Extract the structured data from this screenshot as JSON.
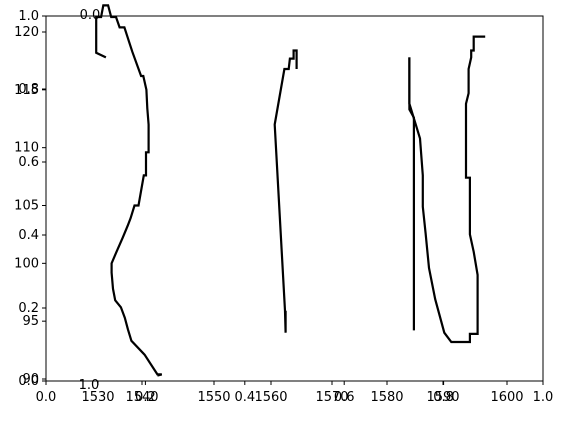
{
  "chart_data": {
    "type": "line",
    "title": "",
    "xlabel": "",
    "ylabel": "",
    "grid": false,
    "legend": "none",
    "line_color": "#000000",
    "axes": [
      {
        "name": "overlay-normalized-axis",
        "xlim": [
          0.0,
          1.0
        ],
        "ylim": [
          0.0,
          1.0
        ],
        "x_ticks": [
          "0.0",
          "0.2",
          "0.4",
          "0.6",
          "0.8",
          "1.0"
        ],
        "y_ticks": [
          "0.0",
          "0.2",
          "0.4",
          "0.6",
          "0.8",
          "1.0"
        ]
      },
      {
        "name": "panel-1",
        "xlim": [
          1526,
          1546
        ],
        "ylim": [
          89.5,
          121.5
        ],
        "x_ticks": [
          "1530",
          "1540"
        ],
        "y_ticks": [
          "90",
          "95",
          "100",
          "105",
          "110",
          "115",
          "120"
        ],
        "series": [
          {
            "x": [
              1531.8,
              1529.6,
              1529.6,
              1530.7,
              1532.3,
              1533.4,
              1534.6,
              1535.7,
              1537.5,
              1539.2,
              1540.1,
              1540.5,
              1540.5,
              1539.9,
              1539.9,
              1538.9,
              1538.9,
              1538.3,
              1537.3,
              1535.4,
              1534.8,
              1533.7,
              1532.9,
              1532.4,
              1532.6,
              1533.4,
              1535.3,
              1536.2,
              1537.5,
              1542.4,
              1543.3,
              1542.4
            ],
            "y": [
              118,
              120,
              118.5,
              121.5,
              121.5,
              120.5,
              119.5,
              119.5,
              118.7,
              115.5,
              114.6,
              112.4,
              109.7,
              108.5,
              107.5,
              106.5,
              104.6,
              104.6,
              102.8,
              101.6,
              100.2,
              98.7,
              97.4,
              96.3,
              95.4,
              94.4,
              93.1,
              92.4,
              90.6,
              90.4,
              90.4,
              90.4
            ],
            "x_corrected": [
              1531.8,
              1529.6,
              1529.6,
              1530.7,
              1532.3,
              1533.4,
              1534.6,
              1535.7,
              1537.5,
              1539.2,
              1540.1,
              1540.5,
              1540.5,
              1539.9,
              1539.9,
              1538.9,
              1538.9,
              1538.3,
              1537.3,
              1535.4,
              1534.8,
              1533.7,
              1532.9,
              1532.4,
              1532.6,
              1533.4,
              1535.3,
              1536.2,
              1537.5,
              1542.4,
              1543.3,
              1542.4
            ],
            "y_corrected": [
              116.5,
              117.6,
              119.8,
              120.8,
              121.5,
              121.5,
              120.9,
              120.1,
              118.8,
              116.1,
              116.1,
              114.8,
              113.3,
              110.7,
              109.1,
              108.2,
              107.6,
              105.6,
              104.4,
              103.1,
              101.7,
              100.4,
              98.9,
              97.7,
              96.9,
              95.9,
              95.1,
              93.1,
              92.4,
              90.4,
              90.5,
              90.5
            ],
            "x_final": [
              1531.8,
              1529.6,
              1529.6,
              1530.7,
              1532.3,
              1533.4,
              1534.6,
              1535.7,
              1537.5,
              1539.2,
              1540.1,
              1540.5,
              1540.5,
              1539.9,
              1539.9,
              1538.9,
              1538.9,
              1538.3,
              1537.3,
              1535.4,
              1534.8,
              1533.7,
              1532.9,
              1532.4,
              1532.6,
              1533.4,
              1535.3,
              1536.2,
              1537.5,
              1542.4,
              1543.3,
              1542.4
            ],
            "y_final": [
              117.5,
              118.6,
              120.8,
              121.4,
              121.4,
              120.3,
              119.1,
              119.1,
              118.3,
              115.5,
              113.8,
              112.6,
              111.0,
              109.1,
              107.8,
              106.6,
              105.4,
              103.9,
              102.6,
              101.4,
              100.0,
              98.6,
              97.3,
              96.2,
              95.4,
              94.4,
              93.2,
              92.4,
              91.7,
              90.6,
              90.4,
              90.4
            ]
          }
        ]
      },
      {
        "name": "panel-2",
        "xlim": [
          1548,
          1570
        ],
        "ylim": [
          89.5,
          121.5
        ],
        "x_ticks": [
          "1550",
          "1560",
          "1570"
        ],
        "y_ticks": [],
        "series": [
          {
            "x": [
              1560.4,
              1559.7,
              1559.7,
              1558.7,
              1556.1,
              1555.4
            ],
            "y": [
              116.2,
              116.2,
              117.5,
              117.5,
              116.2,
              112.2
            ],
            "x_rev": [
              1565.0,
              1565.0,
              1564.4,
              1564.4,
              1563.9,
              1563.9,
              1563.3,
              1562.0,
              1561.7,
              1561.6,
              1561.6
            ],
            "y_rev": [
              116.0,
              117.5,
              117.5,
              116.8,
              116.8,
              116.0,
              116.0,
              111.8,
              95.0,
              93.5,
              95.6
            ]
          }
        ]
      },
      {
        "name": "panel-3",
        "xlim": [
          1580,
          1602
        ],
        "ylim": [
          89.5,
          121.5
        ],
        "x_ticks": [
          "1580",
          "1590",
          "1600"
        ],
        "y_ticks": [],
        "series": [
          {
            "name": "left-trace",
            "x": [
              1582.6,
              1582.6,
              1583.5,
              1583.5,
              1583.5,
              1583.5
            ],
            "y": [
              117.8,
              113.5,
              112.8,
              93.6,
              95.0,
              93.6
            ],
            "x_shown": [
              1582.8,
              1582.8,
              1584.0,
              1584.0,
              1584.0,
              1584.0
            ]
          },
          {
            "name": "middle-trace",
            "x": [
              1582.8,
              1582.8,
              1584.8,
              1585.4,
              1585.4,
              1586.1,
              1586.7,
              1588.2,
              1590.1,
              1591.4,
              1593.9,
              1593.9
            ],
            "y": [
              117.8,
              113.6,
              110.7,
              107.8,
              104.7,
              102.5,
              99.4,
              96.5,
              93.8,
              92.9,
              92.9,
              93.6
            ]
          },
          {
            "name": "right-trace",
            "x": [
              1596.0,
              1596.5,
              1596.0,
              1596.0,
              1595.5,
              1595.5,
              1596.0,
              1596.0,
              1596.6,
              1596.6,
              1597.7
            ],
            "y": [
              93.8,
              93.8,
              96.0,
              100.0,
              105.0,
              107.0,
              110.0,
              113.0,
              116.0,
              119.6,
              119.6
            ]
          }
        ]
      }
    ]
  }
}
